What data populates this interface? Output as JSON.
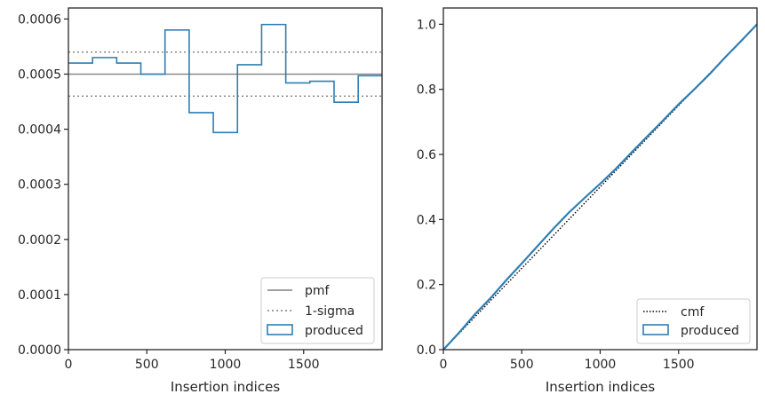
{
  "chart_data": [
    {
      "type": "histogram-step",
      "xlabel": "Insertion indices",
      "ylabel": "",
      "xlim": [
        0,
        2000
      ],
      "ylim": [
        0,
        0.00062
      ],
      "xticks": [
        0,
        500,
        1000,
        1500
      ],
      "yticks": [
        0,
        0.0001,
        0.0002,
        0.0003,
        0.0004,
        0.0005,
        0.0006
      ],
      "ytick_labels": [
        "0.0000",
        "0.0001",
        "0.0002",
        "0.0003",
        "0.0004",
        "0.0005",
        "0.0006"
      ],
      "pmf": 0.0005,
      "sigma_band": [
        0.00046,
        0.00054
      ],
      "bin_edges": [
        0,
        154,
        308,
        462,
        616,
        770,
        924,
        1078,
        1232,
        1386,
        1540,
        1694,
        1848,
        2000
      ],
      "produced": [
        0.00052,
        0.00053,
        0.00052,
        0.0005,
        0.00058,
        0.00043,
        0.000394,
        0.000517,
        0.00059,
        0.000484,
        0.000487,
        0.000449,
        0.000497
      ],
      "legend": [
        "pmf",
        "1-sigma",
        "produced"
      ],
      "legend_position": "lower-right",
      "colors": {
        "pmf": "#808080",
        "sigma": "#808080",
        "produced": "#2e7fb3"
      }
    },
    {
      "type": "line",
      "xlabel": "Insertion indices",
      "ylabel": "",
      "xlim": [
        0,
        2000
      ],
      "ylim": [
        0,
        1.05
      ],
      "xticks": [
        0,
        500,
        1000,
        1500
      ],
      "yticks": [
        0,
        0.2,
        0.4,
        0.6,
        0.8,
        1.0
      ],
      "ytick_labels": [
        "0.0",
        "0.2",
        "0.4",
        "0.6",
        "0.8",
        "1.0"
      ],
      "cmf": {
        "x": [
          0,
          2000
        ],
        "y": [
          0,
          1.0
        ]
      },
      "produced": {
        "x": [
          0,
          100,
          200,
          300,
          400,
          500,
          600,
          700,
          800,
          900,
          1000,
          1100,
          1200,
          1300,
          1400,
          1500,
          1600,
          1700,
          1800,
          1900,
          2000
        ],
        "y": [
          0,
          0.052,
          0.108,
          0.158,
          0.213,
          0.265,
          0.318,
          0.371,
          0.421,
          0.466,
          0.51,
          0.556,
          0.606,
          0.655,
          0.704,
          0.754,
          0.8,
          0.848,
          0.9,
          0.949,
          1.0
        ]
      },
      "legend": [
        "cmf",
        "produced"
      ],
      "legend_position": "lower-right",
      "colors": {
        "cmf": "#000000",
        "produced": "#2e7fb3"
      }
    }
  ]
}
